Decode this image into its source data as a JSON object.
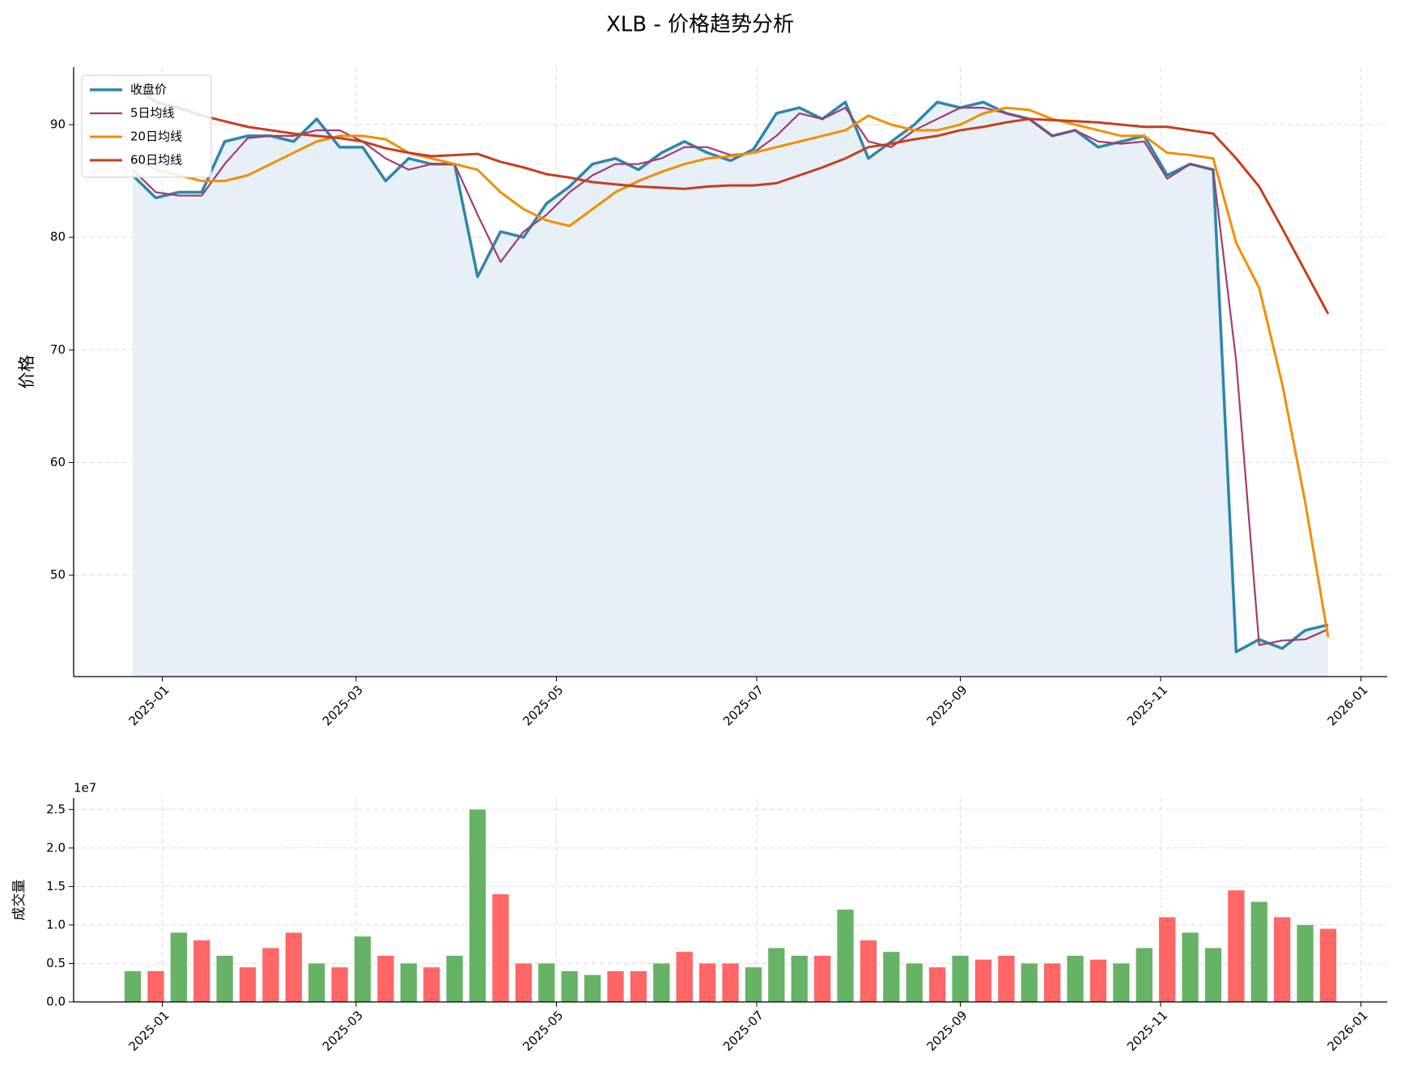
{
  "chart_data": [
    {
      "type": "line",
      "title": "XLB - 价格趋势分析",
      "y_label": "价格",
      "x": [
        "2024-12-23",
        "2024-12-30",
        "2025-01-06",
        "2025-01-13",
        "2025-01-20",
        "2025-01-27",
        "2025-02-03",
        "2025-02-10",
        "2025-02-17",
        "2025-02-24",
        "2025-03-03",
        "2025-03-10",
        "2025-03-17",
        "2025-03-24",
        "2025-03-31",
        "2025-04-07",
        "2025-04-14",
        "2025-04-21",
        "2025-04-28",
        "2025-05-05",
        "2025-05-12",
        "2025-05-19",
        "2025-05-26",
        "2025-06-02",
        "2025-06-09",
        "2025-06-16",
        "2025-06-23",
        "2025-06-30",
        "2025-07-07",
        "2025-07-14",
        "2025-07-21",
        "2025-07-28",
        "2025-08-04",
        "2025-08-11",
        "2025-08-18",
        "2025-08-25",
        "2025-09-01",
        "2025-09-08",
        "2025-09-15",
        "2025-09-22",
        "2025-09-29",
        "2025-10-06",
        "2025-10-13",
        "2025-10-20",
        "2025-10-27",
        "2025-11-03",
        "2025-11-10",
        "2025-11-17",
        "2025-11-24",
        "2025-12-01",
        "2025-12-08",
        "2025-12-15",
        "2025-12-22"
      ],
      "series": [
        {
          "name": "收盘价",
          "color": "#2e86ab",
          "width": 3.5,
          "fill": "#e7f0f7",
          "values": [
            85.5,
            83.5,
            84,
            84,
            88.5,
            89,
            89,
            88.5,
            90.5,
            88,
            88,
            85,
            87,
            86.5,
            86.5,
            76.5,
            80.5,
            80,
            83,
            84.5,
            86.5,
            87,
            86,
            87.5,
            88.5,
            87.5,
            86.8,
            87.8,
            91,
            91.5,
            90.5,
            92,
            87,
            88.5,
            90,
            92,
            91.5,
            92,
            91,
            90.5,
            89,
            89.5,
            88,
            88.5,
            89,
            85.5,
            86.5,
            86,
            43.2,
            44.3,
            43.5,
            45.1,
            45.6
          ]
        },
        {
          "name": "5日均线",
          "color": "#a23b72",
          "width": 2.2,
          "values": [
            86,
            84,
            83.7,
            83.7,
            86.5,
            88.8,
            89,
            89,
            89.5,
            89.5,
            88.5,
            87,
            86,
            86.5,
            86.5,
            82,
            77.8,
            80.5,
            82,
            84,
            85.5,
            86.5,
            86.5,
            87,
            88,
            88,
            87.3,
            87.5,
            89,
            91,
            90.5,
            91.5,
            88.5,
            88,
            89.5,
            90.5,
            91.5,
            91.5,
            91,
            90.5,
            89,
            89.5,
            88.5,
            88.3,
            88.5,
            85.2,
            86.5,
            86,
            69,
            43.8,
            44.2,
            44.3,
            45.2
          ]
        },
        {
          "name": "20日均线",
          "color": "#f18f01",
          "width": 3,
          "values": [
            87,
            86,
            85.5,
            85,
            85,
            85.5,
            86.5,
            87.5,
            88.5,
            89,
            89,
            88.7,
            87.5,
            87,
            86.5,
            86,
            84,
            82.5,
            81.5,
            81,
            82.5,
            84,
            85,
            85.8,
            86.5,
            87,
            87.2,
            87.5,
            88,
            88.5,
            89,
            89.5,
            90.8,
            90,
            89.5,
            89.5,
            90,
            91,
            91.5,
            91.3,
            90.5,
            90,
            89.5,
            89,
            89,
            87.5,
            87.3,
            87,
            79.5,
            75.5,
            67,
            56.5,
            44.5
          ]
        },
        {
          "name": "60日均线",
          "color": "#c73e1d",
          "width": 3,
          "values": [
            93.5,
            92,
            91.5,
            90.8,
            90.3,
            89.8,
            89.5,
            89.2,
            89,
            88.8,
            88.5,
            87.9,
            87.5,
            87.2,
            87.3,
            87.4,
            86.7,
            86.2,
            85.6,
            85.3,
            84.9,
            84.7,
            84.5,
            84.4,
            84.3,
            84.5,
            84.6,
            84.6,
            84.8,
            85.5,
            86.2,
            87,
            88,
            88.3,
            88.7,
            89,
            89.5,
            89.8,
            90.2,
            90.5,
            90.4,
            90.3,
            90.2,
            90,
            89.8,
            89.8,
            89.5,
            89.2,
            87,
            84.5,
            80.8,
            77,
            73.2
          ]
        }
      ],
      "xlim": [
        "2024-12-05",
        "2026-01-09"
      ],
      "xticks": [
        "2025-01",
        "2025-03",
        "2025-05",
        "2025-07",
        "2025-09",
        "2025-11",
        "2026-01"
      ],
      "ylim": [
        41,
        95.1
      ],
      "yticks": [
        50,
        60,
        70,
        80,
        90
      ],
      "grid": true,
      "legend": "upper left"
    },
    {
      "type": "bar",
      "y_label": "成交量",
      "offset_label": "1e7",
      "x": [
        "2024-12-23",
        "2024-12-30",
        "2025-01-06",
        "2025-01-13",
        "2025-01-20",
        "2025-01-27",
        "2025-02-03",
        "2025-02-10",
        "2025-02-17",
        "2025-02-24",
        "2025-03-03",
        "2025-03-10",
        "2025-03-17",
        "2025-03-24",
        "2025-03-31",
        "2025-04-07",
        "2025-04-14",
        "2025-04-21",
        "2025-04-28",
        "2025-05-05",
        "2025-05-12",
        "2025-05-19",
        "2025-05-26",
        "2025-06-02",
        "2025-06-09",
        "2025-06-16",
        "2025-06-23",
        "2025-06-30",
        "2025-07-07",
        "2025-07-14",
        "2025-07-21",
        "2025-07-28",
        "2025-08-04",
        "2025-08-11",
        "2025-08-18",
        "2025-08-25",
        "2025-09-01",
        "2025-09-08",
        "2025-09-15",
        "2025-09-22",
        "2025-09-29",
        "2025-10-06",
        "2025-10-13",
        "2025-10-20",
        "2025-10-27",
        "2025-11-03",
        "2025-11-10",
        "2025-11-17",
        "2025-11-24",
        "2025-12-01",
        "2025-12-08",
        "2025-12-15",
        "2025-12-22"
      ],
      "values": [
        4000000,
        4000000,
        9000000,
        8000000,
        6000000,
        4500000,
        7000000,
        9000000,
        5000000,
        4500000,
        8500000,
        6000000,
        5000000,
        4500000,
        6000000,
        25000000,
        14000000,
        5000000,
        5000000,
        4000000,
        3500000,
        4000000,
        4000000,
        5000000,
        6500000,
        5000000,
        5000000,
        4500000,
        7000000,
        6000000,
        6000000,
        12000000,
        8000000,
        6500000,
        5000000,
        4500000,
        6000000,
        5500000,
        6000000,
        5000000,
        5000000,
        6000000,
        5500000,
        5000000,
        7000000,
        11000000,
        9000000,
        7000000,
        14500000,
        13000000,
        11000000,
        10000000,
        9500000
      ],
      "colors": [
        "#66b366",
        "#ff6666",
        "#66b366",
        "#ff6666",
        "#66b366",
        "#ff6666",
        "#ff6666",
        "#ff6666",
        "#66b366",
        "#ff6666",
        "#66b366",
        "#ff6666",
        "#66b366",
        "#ff6666",
        "#66b366",
        "#66b366",
        "#ff6666",
        "#ff6666",
        "#66b366",
        "#66b366",
        "#66b366",
        "#ff6666",
        "#ff6666",
        "#66b366",
        "#ff6666",
        "#ff6666",
        "#ff6666",
        "#66b366",
        "#66b366",
        "#66b366",
        "#ff6666",
        "#66b366",
        "#ff6666",
        "#66b366",
        "#66b366",
        "#ff6666",
        "#66b366",
        "#ff6666",
        "#ff6666",
        "#66b366",
        "#ff6666",
        "#66b366",
        "#ff6666",
        "#66b366",
        "#66b366",
        "#ff6666",
        "#66b366",
        "#66b366",
        "#ff6666",
        "#66b366",
        "#ff6666",
        "#66b366",
        "#ff6666"
      ],
      "xlim": [
        "2024-12-05",
        "2026-01-09"
      ],
      "xticks": [
        "2025-01",
        "2025-03",
        "2025-05",
        "2025-07",
        "2025-09",
        "2025-11",
        "2026-01"
      ],
      "ylim": [
        0,
        26500000
      ],
      "yticks": [
        {
          "value": 0,
          "label": "0.0"
        },
        {
          "value": 5000000,
          "label": "0.5"
        },
        {
          "value": 10000000,
          "label": "1.0"
        },
        {
          "value": 15000000,
          "label": "1.5"
        },
        {
          "value": 20000000,
          "label": "2.0"
        },
        {
          "value": 25000000,
          "label": "2.5"
        }
      ],
      "grid": true
    }
  ]
}
